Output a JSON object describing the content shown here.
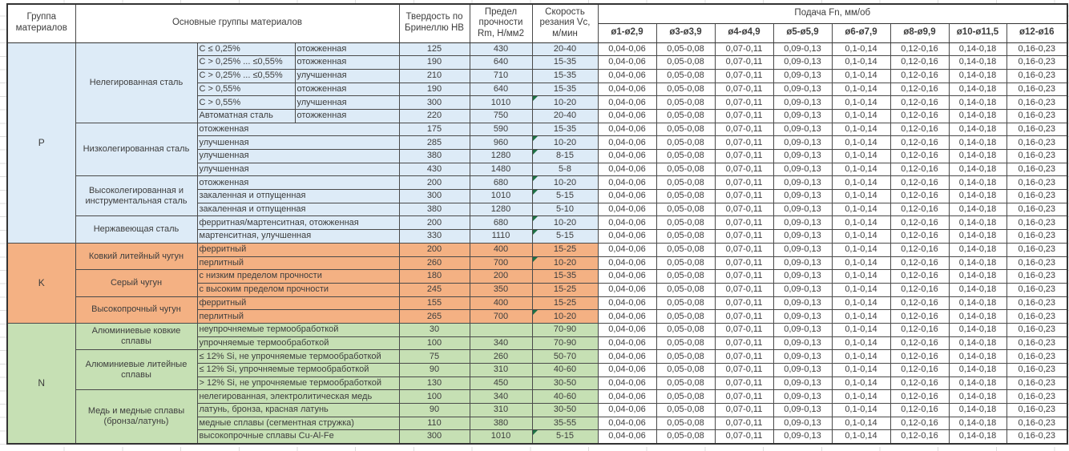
{
  "colors": {
    "group_p_bg": "#DDEBF7",
    "group_k_bg": "#F4B183",
    "group_n_bg": "#C6E0B4",
    "border": "#4a4a4a",
    "flag_triangle": "#1E7145",
    "text": "#3d3d3d"
  },
  "header": {
    "group": "Группа материалов",
    "materials": "Основные группы материалов",
    "hardness": "Твердость по Бринеллю HB",
    "strength": "Предел прочности Rm, Н/мм2",
    "speed": "Скорость резания Vc, м/мин",
    "feed": "Подача Fn, мм/об",
    "feed_diameters": [
      "ø1-ø2,9",
      "ø3-ø3,9",
      "ø4-ø4,9",
      "ø5-ø5,9",
      "ø6-ø7,9",
      "ø8-ø9,9",
      "ø10-ø11,5",
      "ø12-ø16"
    ]
  },
  "feed_values": [
    "0,04-0,06",
    "0,05-0,08",
    "0,07-0,11",
    "0,09-0,13",
    "0,1-0,14",
    "0,12-0,16",
    "0,14-0,18",
    "0,16-0,23"
  ],
  "flag_icon": "error-indicator-triangle-icon",
  "groups": [
    {
      "label": "P",
      "color_class": "g-P",
      "families": [
        {
          "name": "Нелегированная сталь",
          "split": true,
          "rows": [
            {
              "detail": "C ≤ 0,25%",
              "state": "отожженная",
              "hb": "125",
              "rm": "430",
              "vc": "20-40",
              "flag": false
            },
            {
              "detail": "C > 0,25% ... ≤0,55%",
              "state": "отожженная",
              "hb": "190",
              "rm": "640",
              "vc": "15-35",
              "flag": false
            },
            {
              "detail": "C > 0,25% ... ≤0,55%",
              "state": "улучшенная",
              "hb": "210",
              "rm": "710",
              "vc": "15-35",
              "flag": false
            },
            {
              "detail": "C > 0,55%",
              "state": "отожженная",
              "hb": "190",
              "rm": "640",
              "vc": "15-35",
              "flag": false
            },
            {
              "detail": "C > 0,55%",
              "state": "улучшенная",
              "hb": "300",
              "rm": "1010",
              "vc": "10-20",
              "flag": true
            },
            {
              "detail": "Автоматная сталь",
              "state": "отожженная",
              "hb": "220",
              "rm": "750",
              "vc": "20-40",
              "flag": false
            }
          ]
        },
        {
          "name": "Низколегированная сталь",
          "split": false,
          "rows": [
            {
              "detail": "отожженная",
              "hb": "175",
              "rm": "590",
              "vc": "15-35",
              "flag": false
            },
            {
              "detail": "улучшенная",
              "hb": "285",
              "rm": "960",
              "vc": "10-20",
              "flag": true
            },
            {
              "detail": "улучшенная",
              "hb": "380",
              "rm": "1280",
              "vc": "8-15",
              "flag": true
            },
            {
              "detail": "улучшенная",
              "hb": "430",
              "rm": "1480",
              "vc": "5-8",
              "flag": false
            }
          ]
        },
        {
          "name": "Высоколегированная и инструментальная сталь",
          "split": false,
          "rows": [
            {
              "detail": "отожженная",
              "hb": "200",
              "rm": "680",
              "vc": "10-20",
              "flag": true
            },
            {
              "detail": "закаленная и отпущенная",
              "hb": "300",
              "rm": "1010",
              "vc": "5-15",
              "flag": true
            },
            {
              "detail": "закаленная и отпущенная",
              "hb": "380",
              "rm": "1280",
              "vc": "5-10",
              "flag": false
            }
          ]
        },
        {
          "name": "Нержавеющая сталь",
          "split": false,
          "rows": [
            {
              "detail": "ферритная/мартенситная, отожженная",
              "hb": "200",
              "rm": "680",
              "vc": "10-20",
              "flag": true
            },
            {
              "detail": "мартенситная, улучшенная",
              "hb": "330",
              "rm": "1110",
              "vc": "5-15",
              "flag": true
            }
          ]
        }
      ]
    },
    {
      "label": "K",
      "color_class": "g-K",
      "families": [
        {
          "name": "Ковкий литейный чугун",
          "split": false,
          "rows": [
            {
              "detail": "ферритный",
              "hb": "200",
              "rm": "400",
              "vc": "15-25",
              "flag": false
            },
            {
              "detail": "перлитный",
              "hb": "260",
              "rm": "700",
              "vc": "10-20",
              "flag": true
            }
          ]
        },
        {
          "name": "Серый чугун",
          "split": false,
          "rows": [
            {
              "detail": "с низким пределом прочности",
              "hb": "180",
              "rm": "200",
              "vc": "15-35",
              "flag": false
            },
            {
              "detail": "с высоким пределом прочности",
              "hb": "245",
              "rm": "350",
              "vc": "15-25",
              "flag": false
            }
          ]
        },
        {
          "name": "Высокопрочный чугун",
          "split": false,
          "rows": [
            {
              "detail": "ферритный",
              "hb": "155",
              "rm": "400",
              "vc": "15-25",
              "flag": false
            },
            {
              "detail": "перлитный",
              "hb": "265",
              "rm": "700",
              "vc": "10-20",
              "flag": true
            }
          ]
        }
      ]
    },
    {
      "label": "N",
      "color_class": "g-N",
      "families": [
        {
          "name": "Алюминиевые ковкие сплавы",
          "split": false,
          "rows": [
            {
              "detail": "неупрочняемые термообработкой",
              "hb": "30",
              "rm": "",
              "vc": "70-90",
              "flag": false
            },
            {
              "detail": "упрочняемые термообработкой",
              "hb": "100",
              "rm": "340",
              "vc": "70-90",
              "flag": false
            }
          ]
        },
        {
          "name": "Алюминиевые литейные сплавы",
          "split": false,
          "rows": [
            {
              "detail": "≤ 12% Si, не упрочняемые термообработкой",
              "hb": "75",
              "rm": "260",
              "vc": "50-70",
              "flag": false
            },
            {
              "detail": "≤ 12% Si, упрочняемые термообработкой",
              "hb": "90",
              "rm": "310",
              "vc": "40-60",
              "flag": false
            },
            {
              "detail": "> 12% Si, не упрочняемые термообработкой",
              "hb": "130",
              "rm": "450",
              "vc": "30-50",
              "flag": false
            }
          ]
        },
        {
          "name": "Медь и медные сплавы (бронза/латунь)",
          "split": false,
          "rows": [
            {
              "detail": "нелегированная, электролитическая медь",
              "hb": "100",
              "rm": "340",
              "vc": "40-60",
              "flag": false
            },
            {
              "detail": "латунь, бронза, красная латунь",
              "hb": "90",
              "rm": "310",
              "vc": "30-50",
              "flag": false
            },
            {
              "detail": "медные сплавы (сегментная стружка)",
              "hb": "110",
              "rm": "380",
              "vc": "35-55",
              "flag": false
            },
            {
              "detail": "высокопрочные сплавы Cu-Al-Fe",
              "hb": "300",
              "rm": "1010",
              "vc": "5-15",
              "flag": true
            }
          ]
        }
      ]
    }
  ]
}
